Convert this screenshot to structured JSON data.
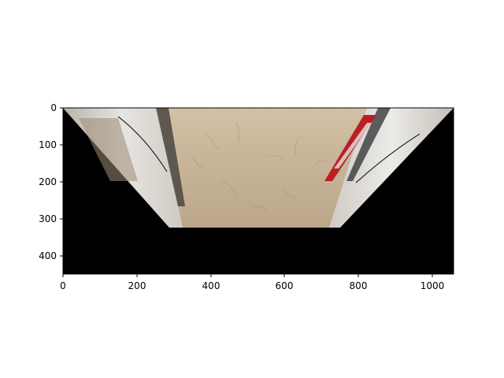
{
  "image": {
    "description_free": true,
    "axes": {
      "x_ticks": [
        {
          "value": 0,
          "label": "0"
        },
        {
          "value": 200,
          "label": "200"
        },
        {
          "value": 400,
          "label": "400"
        },
        {
          "value": 600,
          "label": "600"
        },
        {
          "value": 800,
          "label": "800"
        },
        {
          "value": 1000,
          "label": "1000"
        }
      ],
      "y_ticks": [
        {
          "value": 0,
          "label": "0"
        },
        {
          "value": 100,
          "label": "100"
        },
        {
          "value": 200,
          "label": "200"
        },
        {
          "value": 300,
          "label": "300"
        },
        {
          "value": 400,
          "label": "400"
        }
      ],
      "x_range": [
        0,
        1057
      ],
      "y_range": [
        0,
        450
      ],
      "y_inverted": true
    },
    "colors": {
      "background": "#000000",
      "floor": "#c8b497",
      "wall_light": "#d4d0c8",
      "accent_red": "#b82020"
    }
  }
}
